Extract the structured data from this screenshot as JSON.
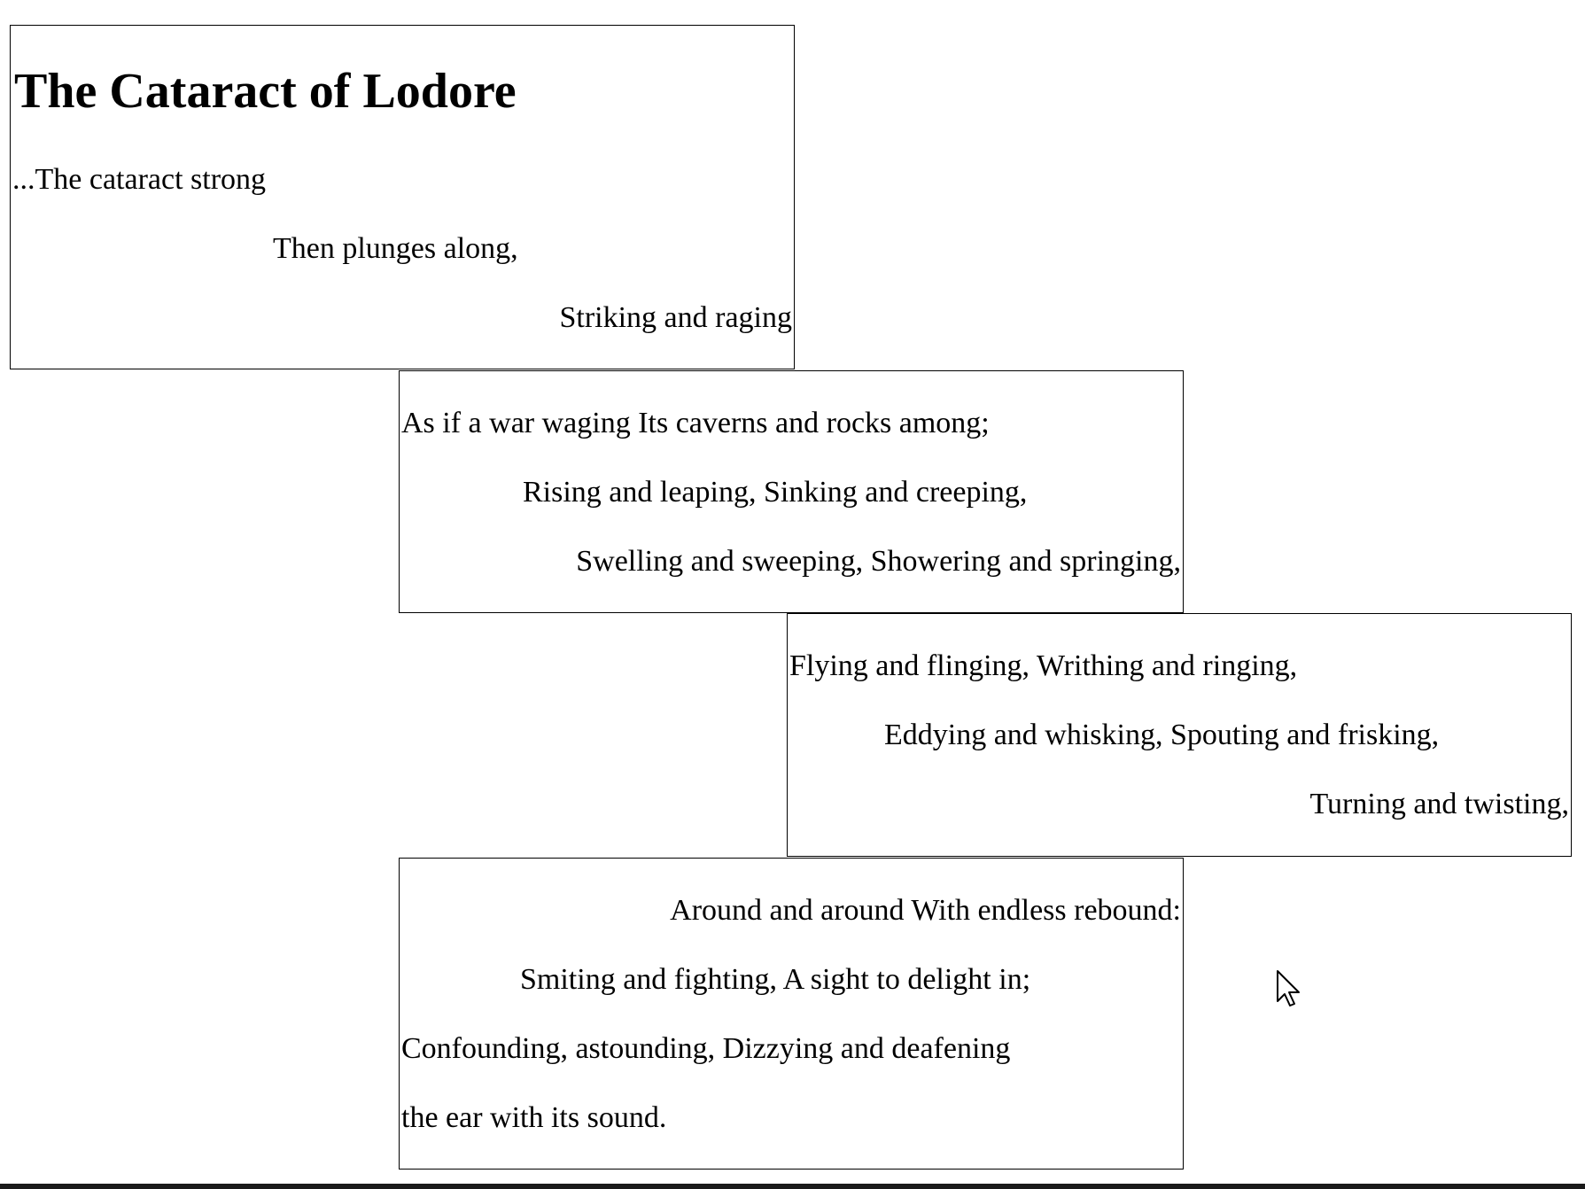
{
  "poem": {
    "title": "The Cataract of Lodore",
    "stanza1": {
      "line1": "...The cataract strong",
      "line2": "Then plunges along,",
      "line3": "Striking and raging"
    },
    "stanza2": {
      "line1": "As if a war waging Its caverns and rocks among;",
      "line2": "Rising and leaping, Sinking and creeping,",
      "line3": "Swelling and sweeping, Showering and springing,"
    },
    "stanza3": {
      "line1": "Flying and flinging, Writhing and ringing,",
      "line2": "Eddying and whisking, Spouting and frisking,",
      "line3": "Turning and twisting,"
    },
    "stanza4": {
      "line1": "Around and around With endless rebound:",
      "line2": "Smiting and fighting, A sight to delight in;",
      "line3": "Confounding, astounding, Dizzying and deafening",
      "line4": "the ear with its sound."
    }
  },
  "icons": {
    "cursor": "mouse-pointer-icon"
  }
}
